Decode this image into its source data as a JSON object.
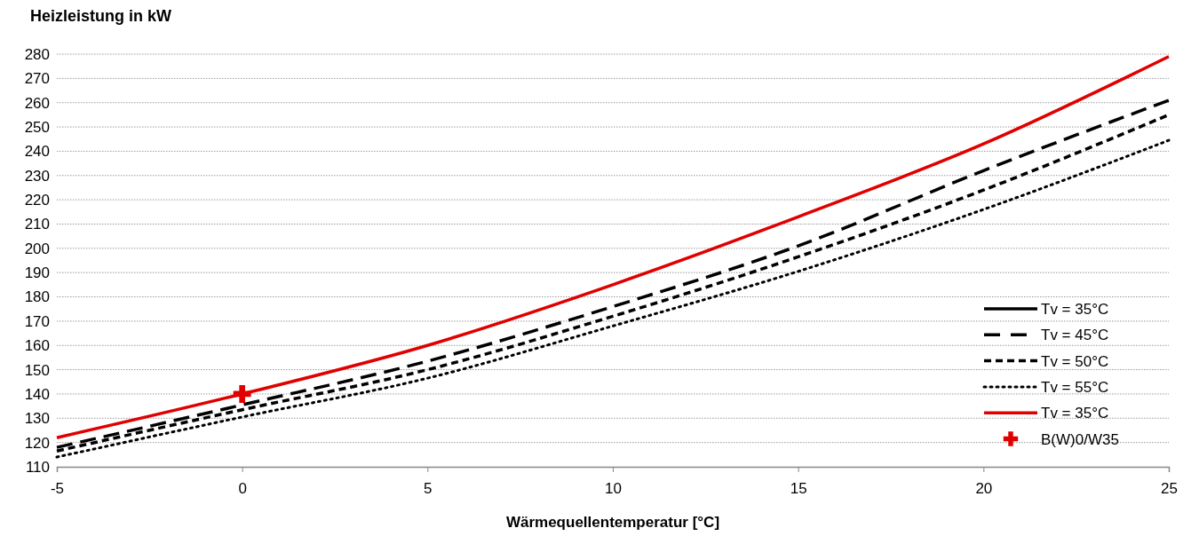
{
  "chart_data": {
    "type": "line",
    "ylabel": "Heizleistung in kW",
    "xlabel": "Wärmequellentemperatur [°C]",
    "x": [
      -5,
      0,
      5,
      10,
      15,
      20,
      25
    ],
    "xlim": [
      -5,
      25
    ],
    "xticks": [
      -5,
      0,
      5,
      10,
      15,
      20,
      25
    ],
    "ylim": [
      110,
      280
    ],
    "yticks": [
      110,
      120,
      130,
      140,
      150,
      160,
      170,
      180,
      190,
      200,
      210,
      220,
      230,
      240,
      250,
      260,
      270,
      280
    ],
    "grid": "y",
    "legend": "bottom right",
    "marker": "none",
    "series": [
      {
        "name": "Tv = 35°C",
        "color": "#000000",
        "line_style": "solid",
        "values": [
          null,
          null,
          null,
          null,
          null,
          null,
          null
        ]
      },
      {
        "name": "Tv = 45°C",
        "color": "#000000",
        "line_style": "dashed",
        "values": [
          118,
          135.5,
          153.5,
          176,
          201,
          232,
          261
        ]
      },
      {
        "name": "Tv = 50°C",
        "color": "#000000",
        "line_style": "dashed",
        "values": [
          116.5,
          133.5,
          150,
          172,
          196.5,
          224,
          255
        ]
      },
      {
        "name": "Tv = 55°C",
        "color": "#000000",
        "line_style": "dotted",
        "values": [
          114,
          130.5,
          146.5,
          168,
          190.5,
          216,
          244.5
        ]
      },
      {
        "name": "Tv = 35°C",
        "color": "#e00000",
        "line_style": "solid",
        "values": [
          122,
          140,
          160,
          185,
          213,
          243,
          279
        ]
      },
      {
        "name": "B(W)0/W35",
        "type": "scatter",
        "marker": "cross",
        "color": "#e00000",
        "x": [
          0
        ],
        "values": [
          140
        ]
      }
    ]
  }
}
